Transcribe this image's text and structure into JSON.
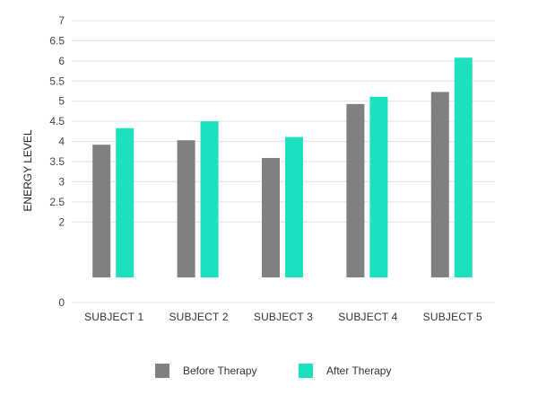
{
  "chart_data": {
    "type": "bar",
    "categories": [
      "SUBJECT 1",
      "SUBJECT 2",
      "SUBJECT 3",
      "SUBJECT 4",
      "SUBJECT 5"
    ],
    "series": [
      {
        "name": "Before Therapy",
        "color": "#808080",
        "values": [
          3.92,
          4.03,
          3.59,
          4.93,
          5.23
        ]
      },
      {
        "name": "After Therapy",
        "color": "#1de0bf",
        "values": [
          4.33,
          4.5,
          4.11,
          5.11,
          6.08
        ]
      }
    ],
    "title": "",
    "xlabel": "",
    "ylabel": "ENERGY LEVEL",
    "ylim": [
      0,
      7
    ],
    "y_ticks": [
      "0",
      "2",
      "2.5",
      "3",
      "3.5",
      "4",
      "4.5",
      "5",
      "5.5",
      "6",
      "6.5",
      "7"
    ],
    "grid": true,
    "legend_position": "bottom"
  }
}
